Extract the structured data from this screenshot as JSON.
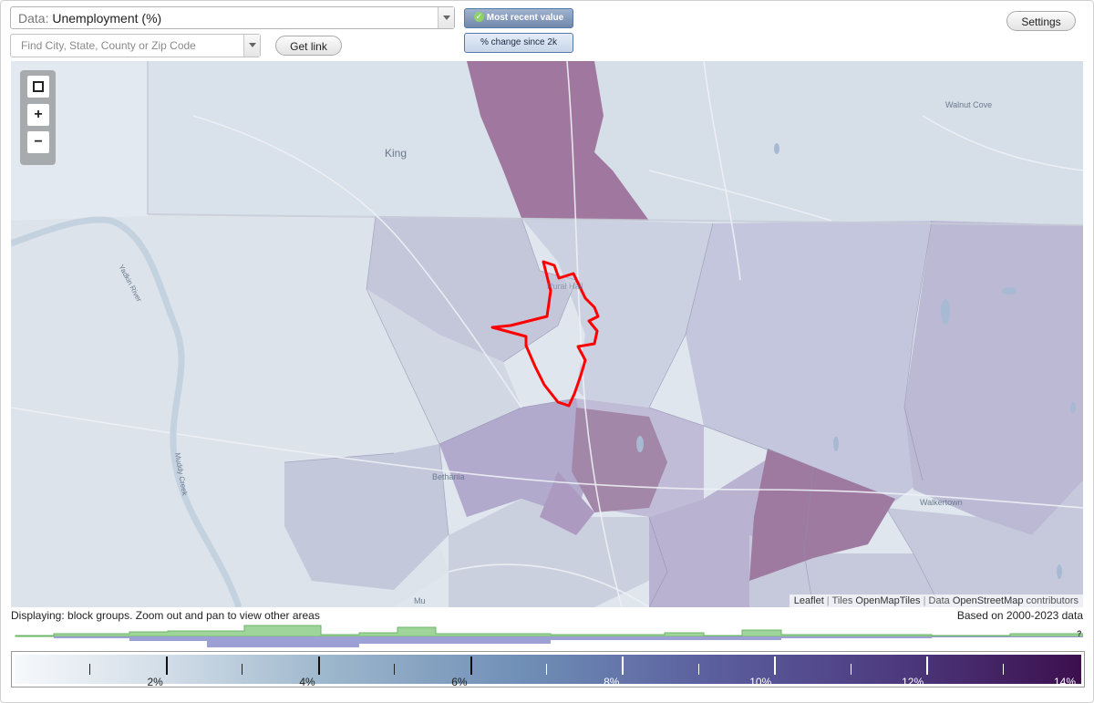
{
  "controls": {
    "data_select_prefix": "Data:",
    "data_select_value": "Unemployment (%)",
    "find_placeholder": "Find City, State, County or Zip Code",
    "get_link_label": "Get link",
    "settings_label": "Settings",
    "toggle_recent_label": "Most recent value",
    "toggle_change_label": "% change since 2k"
  },
  "map": {
    "place_labels": [
      "King",
      "Walnut Cove",
      "Rural Hall",
      "Bethania",
      "Walkertown",
      "Yadkin River",
      "Muddy Creek",
      "Mu"
    ],
    "zoom_in_label": "+",
    "zoom_out_label": "−",
    "attribution": {
      "leaflet": "Leaflet",
      "sep1": " | ",
      "tiles_prefix": "Tiles ",
      "tiles": "OpenMapTiles",
      "sep2": " | ",
      "data_prefix": "Data ",
      "data": "OpenStreetMap",
      "contributors": " contributors"
    },
    "colors": {
      "base": "#dde4ec",
      "light": "#d2dae6",
      "mid": "#b9c1d8",
      "purple": "#a89ec1",
      "dark": "#9f7a9f",
      "highlight": "#ff0000"
    }
  },
  "footer": {
    "displaying": "Displaying: block groups. Zoom out and pan to view other areas",
    "based_on": "Based on 2000-2023 data",
    "histogram_question": "?"
  },
  "legend": {
    "min": 0,
    "max": 14,
    "labels": [
      "2%",
      "4%",
      "6%",
      "8%",
      "10%",
      "12%",
      "14%"
    ],
    "label_values": [
      2,
      4,
      6,
      8,
      10,
      12,
      14
    ],
    "minor_values": [
      1,
      3,
      5,
      7,
      9,
      11,
      13
    ]
  }
}
